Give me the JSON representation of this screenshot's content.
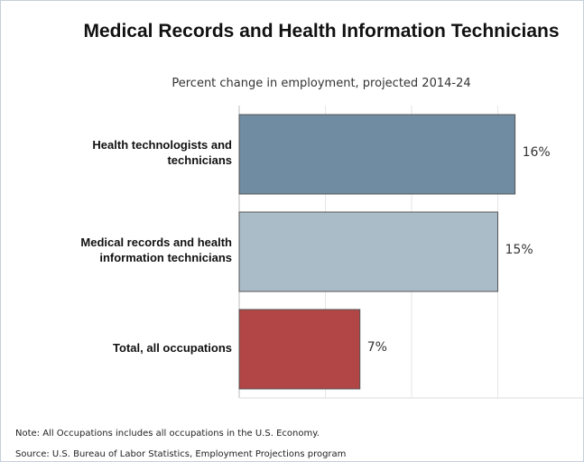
{
  "chart_data": {
    "type": "bar",
    "orientation": "horizontal",
    "title": "Medical Records and Health Information Technicians",
    "subtitle": "Percent change in employment, projected 2014-24",
    "categories": [
      "Health technologists and technicians",
      "Medical records and health information technicians",
      "Total, all occupations"
    ],
    "values": [
      16,
      15,
      7
    ],
    "value_labels": [
      "16%",
      "15%",
      "7%"
    ],
    "colors": [
      "#6f8ca3",
      "#abbcc9",
      "#b24545"
    ],
    "xlim": [
      0,
      20
    ],
    "xticks": [
      0,
      5,
      10,
      15,
      20
    ],
    "grid": true,
    "notes": [
      "Note: All Occupations includes all occupations in the U.S. Economy.",
      "Source: U.S. Bureau of Labor Statistics, Employment Projections program"
    ]
  }
}
